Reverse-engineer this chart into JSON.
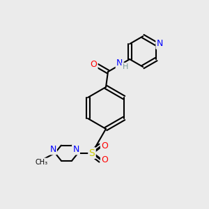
{
  "bg_color": "#ebebeb",
  "bond_color": "#000000",
  "bond_width": 1.5,
  "atom_colors": {
    "N": "#0000ff",
    "O": "#ff0000",
    "S": "#cccc00",
    "C": "#000000",
    "H": "#7a9a9a"
  },
  "font_size": 9,
  "font_size_small": 8
}
